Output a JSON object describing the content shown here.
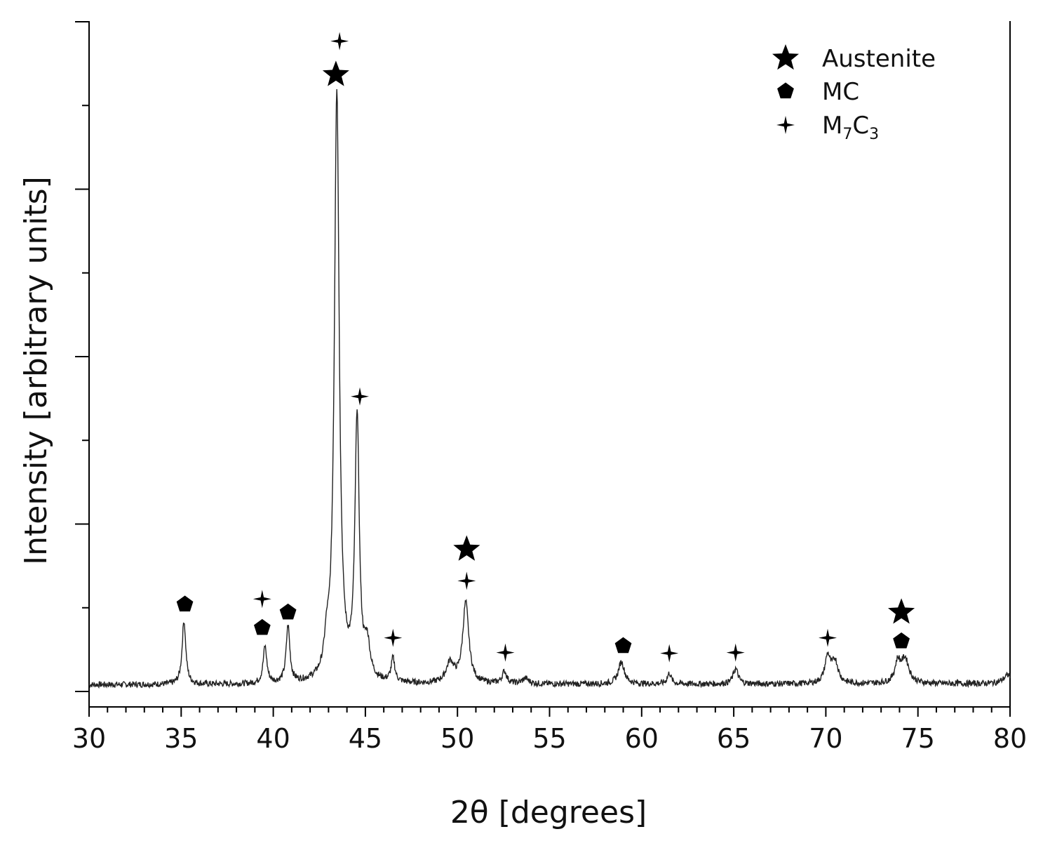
{
  "chart_data": {
    "type": "line",
    "title": "",
    "xlabel": "2θ [degrees]",
    "ylabel": "Intensity [arbitrary units]",
    "xlim": [
      30,
      80
    ],
    "ylim": [
      0,
      100
    ],
    "x_ticks": [
      30,
      35,
      40,
      45,
      50,
      55,
      60,
      65,
      70,
      75,
      80
    ],
    "y_tick_labels_shown": false,
    "grid": false,
    "legend": {
      "position": "top-right",
      "entries": [
        {
          "label": "Austenite",
          "symbol": "star"
        },
        {
          "label": "MC",
          "symbol": "pentagon"
        },
        {
          "label_main": "M",
          "label_sub1": "7",
          "label_mid": "C",
          "label_sub2": "3",
          "label": "M7C3",
          "symbol": "four-point-star"
        }
      ]
    },
    "baseline": 1.0,
    "peaks": [
      {
        "x": 35.15,
        "height": 9.5,
        "width": 0.12
      },
      {
        "x": 39.55,
        "height": 5.5,
        "width": 0.12
      },
      {
        "x": 40.8,
        "height": 8.5,
        "width": 0.12
      },
      {
        "x": 42.9,
        "height": 4.0,
        "width": 0.15
      },
      {
        "x": 43.45,
        "height": 88.0,
        "width": 0.16
      },
      {
        "x": 44.55,
        "height": 39.0,
        "width": 0.14
      },
      {
        "x": 45.1,
        "height": 5.0,
        "width": 0.18
      },
      {
        "x": 46.5,
        "height": 3.5,
        "width": 0.12
      },
      {
        "x": 49.6,
        "height": 3.0,
        "width": 0.25
      },
      {
        "x": 50.45,
        "height": 12.0,
        "width": 0.2
      },
      {
        "x": 52.55,
        "height": 1.8,
        "width": 0.15
      },
      {
        "x": 53.7,
        "height": 0.8,
        "width": 0.2
      },
      {
        "x": 58.9,
        "height": 3.3,
        "width": 0.2
      },
      {
        "x": 61.5,
        "height": 1.6,
        "width": 0.13
      },
      {
        "x": 65.1,
        "height": 2.3,
        "width": 0.16
      },
      {
        "x": 70.1,
        "height": 4.0,
        "width": 0.18
      },
      {
        "x": 70.5,
        "height": 3.2,
        "width": 0.2
      },
      {
        "x": 73.9,
        "height": 3.0,
        "width": 0.18
      },
      {
        "x": 74.3,
        "height": 3.6,
        "width": 0.25
      },
      {
        "x": 79.9,
        "height": 1.3,
        "width": 0.3
      }
    ],
    "annotations": [
      {
        "x": 35.2,
        "y": 13.0,
        "symbol": "pentagon"
      },
      {
        "x": 39.4,
        "y": 9.5,
        "symbol": "pentagon"
      },
      {
        "x": 39.4,
        "y": 13.8,
        "symbol": "four-point-star"
      },
      {
        "x": 40.8,
        "y": 11.8,
        "symbol": "pentagon"
      },
      {
        "x": 43.4,
        "y": 92.0,
        "symbol": "star"
      },
      {
        "x": 43.6,
        "y": 97.0,
        "symbol": "four-point-star"
      },
      {
        "x": 44.7,
        "y": 44.0,
        "symbol": "four-point-star"
      },
      {
        "x": 46.5,
        "y": 8.0,
        "symbol": "four-point-star"
      },
      {
        "x": 50.5,
        "y": 21.2,
        "symbol": "star"
      },
      {
        "x": 50.5,
        "y": 16.5,
        "symbol": "four-point-star"
      },
      {
        "x": 52.6,
        "y": 5.8,
        "symbol": "four-point-star"
      },
      {
        "x": 59.0,
        "y": 6.8,
        "symbol": "pentagon"
      },
      {
        "x": 61.5,
        "y": 5.7,
        "symbol": "four-point-star"
      },
      {
        "x": 65.1,
        "y": 5.8,
        "symbol": "four-point-star"
      },
      {
        "x": 70.1,
        "y": 8.0,
        "symbol": "four-point-star"
      },
      {
        "x": 74.1,
        "y": 11.8,
        "symbol": "star"
      },
      {
        "x": 74.1,
        "y": 7.5,
        "symbol": "pentagon"
      }
    ]
  }
}
